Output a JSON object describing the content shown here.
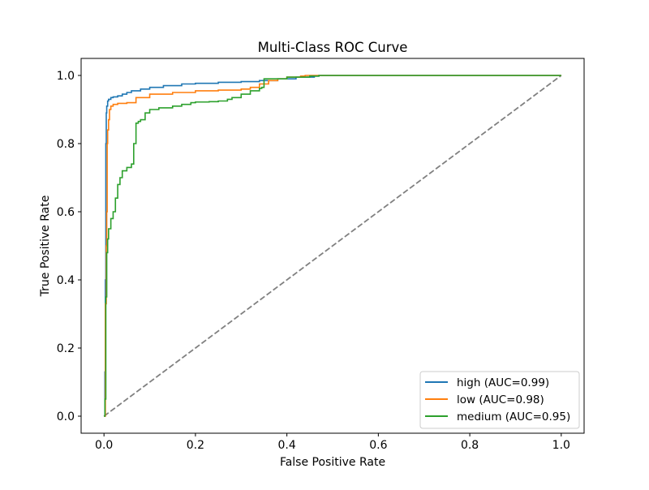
{
  "chart_data": {
    "type": "line",
    "title": "Multi-Class ROC Curve",
    "xlabel": "False Positive Rate",
    "ylabel": "True Positive Rate",
    "xlim": [
      -0.05,
      1.05
    ],
    "ylim": [
      -0.05,
      1.05
    ],
    "xticks": [
      0.0,
      0.2,
      0.4,
      0.6,
      0.8,
      1.0
    ],
    "yticks": [
      0.0,
      0.2,
      0.4,
      0.6,
      0.8,
      1.0
    ],
    "xtick_labels": [
      "0.0",
      "0.2",
      "0.4",
      "0.6",
      "0.8",
      "1.0"
    ],
    "ytick_labels": [
      "0.0",
      "0.2",
      "0.4",
      "0.6",
      "0.8",
      "1.0"
    ],
    "grid": false,
    "legend_position": "lower-right",
    "series": [
      {
        "name": "high (AUC=0.99)",
        "color": "#1f77b4",
        "x": [
          0,
          0.002,
          0.003,
          0.004,
          0.005,
          0.006,
          0.008,
          0.01,
          0.015,
          0.02,
          0.03,
          0.04,
          0.05,
          0.06,
          0.08,
          0.1,
          0.13,
          0.17,
          0.2,
          0.25,
          0.3,
          0.34,
          0.38,
          0.42,
          0.46,
          0.47,
          1.0
        ],
        "y": [
          0,
          0.13,
          0.4,
          0.8,
          0.89,
          0.91,
          0.925,
          0.93,
          0.935,
          0.937,
          0.94,
          0.945,
          0.95,
          0.955,
          0.96,
          0.965,
          0.97,
          0.975,
          0.977,
          0.98,
          0.982,
          0.985,
          0.99,
          0.995,
          0.998,
          1.0,
          1.0
        ]
      },
      {
        "name": "low (AUC=0.98)",
        "color": "#ff7f0e",
        "x": [
          0,
          0.003,
          0.005,
          0.006,
          0.007,
          0.008,
          0.01,
          0.012,
          0.015,
          0.02,
          0.03,
          0.05,
          0.07,
          0.1,
          0.15,
          0.2,
          0.25,
          0.3,
          0.32,
          0.34,
          0.36,
          0.38,
          0.4,
          0.43,
          0.44,
          1.0
        ],
        "y": [
          0,
          0.33,
          0.5,
          0.6,
          0.8,
          0.84,
          0.87,
          0.9,
          0.91,
          0.915,
          0.918,
          0.92,
          0.935,
          0.945,
          0.95,
          0.955,
          0.957,
          0.96,
          0.965,
          0.975,
          0.985,
          0.99,
          0.995,
          0.998,
          1.0,
          1.0
        ]
      },
      {
        "name": "medium (AUC=0.95)",
        "color": "#2ca02c",
        "x": [
          0,
          0.002,
          0.004,
          0.006,
          0.008,
          0.01,
          0.015,
          0.02,
          0.025,
          0.03,
          0.035,
          0.04,
          0.05,
          0.06,
          0.065,
          0.07,
          0.075,
          0.08,
          0.09,
          0.1,
          0.12,
          0.15,
          0.17,
          0.19,
          0.2,
          0.23,
          0.25,
          0.27,
          0.28,
          0.3,
          0.32,
          0.34,
          0.345,
          0.35,
          0.4,
          0.45,
          0.47,
          1.0
        ],
        "y": [
          0,
          0.05,
          0.35,
          0.48,
          0.52,
          0.55,
          0.58,
          0.6,
          0.64,
          0.68,
          0.7,
          0.72,
          0.73,
          0.74,
          0.8,
          0.86,
          0.865,
          0.87,
          0.89,
          0.9,
          0.905,
          0.91,
          0.915,
          0.92,
          0.922,
          0.923,
          0.925,
          0.93,
          0.935,
          0.945,
          0.955,
          0.962,
          0.965,
          0.99,
          0.995,
          0.998,
          1.0,
          1.0
        ]
      }
    ],
    "reference_line": {
      "x": [
        0,
        1
      ],
      "y": [
        0,
        1
      ],
      "color": "#808080",
      "style": "dashed"
    }
  }
}
